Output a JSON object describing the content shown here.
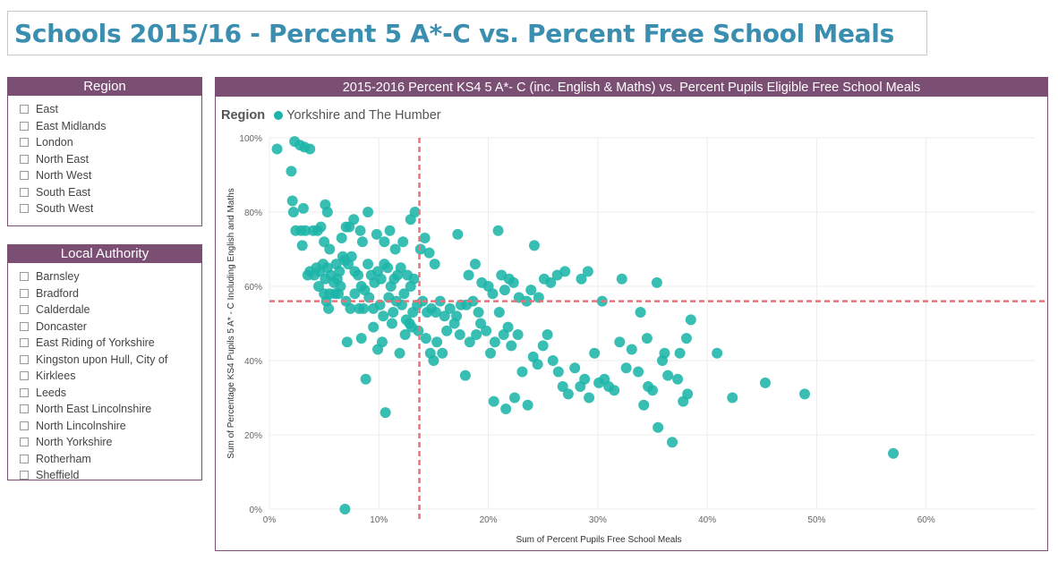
{
  "page": {
    "title": "Schools 2015/16 - Percent 5 A*-C  vs. Percent Free School Meals"
  },
  "region_slicer": {
    "header": "Region",
    "items": [
      "East",
      "East Midlands",
      "London",
      "North East",
      "North West",
      "South East",
      "South West"
    ]
  },
  "la_slicer": {
    "header": "Local Authority",
    "items": [
      "Barnsley",
      "Bradford",
      "Calderdale",
      "Doncaster",
      "East Riding of Yorkshire",
      "Kingston upon Hull, City of",
      "Kirklees",
      "Leeds",
      "North East Lincolnshire",
      "North Lincolnshire",
      "North Yorkshire",
      "Rotherham",
      "Sheffield"
    ]
  },
  "colors": {
    "accent": "#7b4e74",
    "point": "#1cb5a8",
    "refline": "#e8737a",
    "title": "#3a8fb0"
  },
  "chart_data": {
    "type": "scatter",
    "title": "2015-2016 Percent KS4 5 A*- C (inc. English & Maths) vs. Percent Pupils Eligible Free School Meals",
    "legend_title": "Region",
    "legend_position": "top-left",
    "xlabel": "Sum of Percent Pupils Free School Meals",
    "ylabel": "Sum of Percentage KS4 Pupils 5 A* - C Including English and Maths",
    "xlim": [
      0,
      70
    ],
    "ylim": [
      0,
      100
    ],
    "xticks": [
      "0%",
      "10%",
      "20%",
      "30%",
      "40%",
      "50%",
      "60%"
    ],
    "yticks": [
      "0%",
      "20%",
      "40%",
      "60%",
      "80%",
      "100%"
    ],
    "grid": true,
    "reference_lines": {
      "x": 13.7,
      "y": 56
    },
    "series": [
      {
        "name": "Yorkshire and The Humber",
        "points": [
          [
            0.7,
            97
          ],
          [
            2.3,
            99
          ],
          [
            2.8,
            98
          ],
          [
            3.2,
            97.5
          ],
          [
            3.7,
            97
          ],
          [
            2.0,
            91
          ],
          [
            2.1,
            83
          ],
          [
            2.2,
            80
          ],
          [
            2.4,
            75
          ],
          [
            2.9,
            75
          ],
          [
            3.1,
            81
          ],
          [
            3.3,
            75
          ],
          [
            3.0,
            71
          ],
          [
            3.5,
            63
          ],
          [
            3.7,
            64
          ],
          [
            4.1,
            63
          ],
          [
            4.3,
            65
          ],
          [
            4.6,
            64
          ],
          [
            4.9,
            66
          ],
          [
            5.1,
            62
          ],
          [
            5.3,
            65
          ],
          [
            5.6,
            63
          ],
          [
            5.9,
            61
          ],
          [
            6.1,
            66
          ],
          [
            6.4,
            64
          ],
          [
            6.7,
            68
          ],
          [
            6.9,
            67
          ],
          [
            7.2,
            66
          ],
          [
            7.5,
            68
          ],
          [
            7.8,
            64
          ],
          [
            8.1,
            63
          ],
          [
            8.4,
            60
          ],
          [
            8.7,
            59
          ],
          [
            9.0,
            66
          ],
          [
            9.3,
            63
          ],
          [
            9.6,
            61
          ],
          [
            9.9,
            64
          ],
          [
            10.2,
            62
          ],
          [
            10.5,
            66
          ],
          [
            10.8,
            65
          ],
          [
            11.1,
            60
          ],
          [
            11.4,
            62
          ],
          [
            11.7,
            63
          ],
          [
            12.0,
            65
          ],
          [
            12.3,
            58
          ],
          [
            12.6,
            63
          ],
          [
            12.9,
            60
          ],
          [
            13.2,
            62
          ],
          [
            4.5,
            60
          ],
          [
            5.0,
            58
          ],
          [
            5.2,
            56
          ],
          [
            5.4,
            54
          ],
          [
            5.5,
            58
          ],
          [
            6.0,
            58
          ],
          [
            6.3,
            58
          ],
          [
            7.0,
            56
          ],
          [
            7.4,
            54
          ],
          [
            7.8,
            58
          ],
          [
            8.2,
            54
          ],
          [
            8.6,
            54
          ],
          [
            9.1,
            57
          ],
          [
            9.5,
            54
          ],
          [
            10.1,
            55
          ],
          [
            10.4,
            52
          ],
          [
            10.9,
            57
          ],
          [
            11.3,
            53
          ],
          [
            11.6,
            56
          ],
          [
            12.1,
            55
          ],
          [
            12.5,
            51
          ],
          [
            12.8,
            50
          ],
          [
            13.1,
            53
          ],
          [
            13.5,
            55
          ],
          [
            14.0,
            56
          ],
          [
            14.4,
            53
          ],
          [
            14.8,
            54
          ],
          [
            15.2,
            53
          ],
          [
            15.6,
            56
          ],
          [
            16.0,
            52
          ],
          [
            16.5,
            54
          ],
          [
            17.1,
            52
          ],
          [
            17.5,
            55
          ],
          [
            18.0,
            55
          ],
          [
            18.6,
            56
          ],
          [
            19.1,
            53
          ],
          [
            4.0,
            75
          ],
          [
            4.4,
            75
          ],
          [
            4.7,
            76
          ],
          [
            5.0,
            72
          ],
          [
            5.5,
            70
          ],
          [
            6.6,
            73
          ],
          [
            7.0,
            76
          ],
          [
            7.3,
            76
          ],
          [
            7.7,
            78
          ],
          [
            8.3,
            75
          ],
          [
            8.5,
            72
          ],
          [
            9.0,
            80
          ],
          [
            9.8,
            74
          ],
          [
            10.5,
            72
          ],
          [
            11.0,
            75
          ],
          [
            11.5,
            70
          ],
          [
            12.2,
            72
          ],
          [
            12.9,
            78
          ],
          [
            13.3,
            80
          ],
          [
            13.8,
            70
          ],
          [
            14.2,
            73
          ],
          [
            14.6,
            69
          ],
          [
            15.1,
            66
          ],
          [
            17.2,
            74
          ],
          [
            5.1,
            82
          ],
          [
            5.3,
            80
          ],
          [
            6.2,
            62
          ],
          [
            6.5,
            60
          ],
          [
            7.1,
            45
          ],
          [
            8.4,
            46
          ],
          [
            8.8,
            35
          ],
          [
            9.5,
            49
          ],
          [
            9.9,
            43
          ],
          [
            10.3,
            45
          ],
          [
            10.6,
            26
          ],
          [
            11.2,
            50
          ],
          [
            11.9,
            42
          ],
          [
            12.4,
            47
          ],
          [
            13.0,
            49
          ],
          [
            13.6,
            48
          ],
          [
            14.3,
            46
          ],
          [
            14.7,
            42
          ],
          [
            15.0,
            40
          ],
          [
            15.3,
            45
          ],
          [
            15.8,
            42
          ],
          [
            16.2,
            48
          ],
          [
            16.9,
            50
          ],
          [
            17.4,
            47
          ],
          [
            17.9,
            36
          ],
          [
            18.3,
            45
          ],
          [
            18.9,
            47
          ],
          [
            19.3,
            50
          ],
          [
            19.8,
            48
          ],
          [
            20.2,
            42
          ],
          [
            20.6,
            45
          ],
          [
            21.0,
            53
          ],
          [
            21.4,
            47
          ],
          [
            21.8,
            49
          ],
          [
            22.1,
            44
          ],
          [
            22.7,
            47
          ],
          [
            18.2,
            63
          ],
          [
            18.8,
            66
          ],
          [
            19.4,
            61
          ],
          [
            20.0,
            60
          ],
          [
            20.4,
            58
          ],
          [
            20.9,
            75
          ],
          [
            21.2,
            63
          ],
          [
            21.5,
            59
          ],
          [
            21.9,
            62
          ],
          [
            22.3,
            61
          ],
          [
            22.8,
            57
          ],
          [
            23.5,
            56
          ],
          [
            24.2,
            71
          ],
          [
            23.9,
            59
          ],
          [
            24.6,
            57
          ],
          [
            25.1,
            62
          ],
          [
            25.7,
            61
          ],
          [
            26.3,
            63
          ],
          [
            27.0,
            64
          ],
          [
            28.5,
            62
          ],
          [
            29.1,
            64
          ],
          [
            30.4,
            56
          ],
          [
            32.2,
            62
          ],
          [
            35.4,
            61
          ],
          [
            20.5,
            29
          ],
          [
            21.6,
            27
          ],
          [
            22.4,
            30
          ],
          [
            23.1,
            37
          ],
          [
            23.6,
            28
          ],
          [
            24.1,
            41
          ],
          [
            24.5,
            39
          ],
          [
            25.0,
            44
          ],
          [
            25.4,
            47
          ],
          [
            25.9,
            40
          ],
          [
            26.4,
            37
          ],
          [
            26.8,
            33
          ],
          [
            27.3,
            31
          ],
          [
            27.9,
            38
          ],
          [
            28.4,
            33
          ],
          [
            28.8,
            35
          ],
          [
            29.2,
            30
          ],
          [
            29.7,
            42
          ],
          [
            30.1,
            34
          ],
          [
            30.6,
            35
          ],
          [
            31.0,
            33
          ],
          [
            31.5,
            32
          ],
          [
            32.0,
            45
          ],
          [
            32.6,
            38
          ],
          [
            33.1,
            43
          ],
          [
            33.7,
            37
          ],
          [
            34.2,
            28
          ],
          [
            34.6,
            33
          ],
          [
            35.0,
            32
          ],
          [
            35.5,
            22
          ],
          [
            35.9,
            40
          ],
          [
            36.4,
            36
          ],
          [
            36.8,
            18
          ],
          [
            37.3,
            35
          ],
          [
            37.8,
            29
          ],
          [
            38.2,
            31
          ],
          [
            33.9,
            53
          ],
          [
            34.5,
            46
          ],
          [
            36.1,
            42
          ],
          [
            37.5,
            42
          ],
          [
            38.1,
            46
          ],
          [
            38.5,
            51
          ],
          [
            40.9,
            42
          ],
          [
            42.3,
            30
          ],
          [
            45.3,
            34
          ],
          [
            48.9,
            31
          ],
          [
            57.0,
            15
          ],
          [
            6.9,
            0
          ]
        ]
      }
    ]
  }
}
